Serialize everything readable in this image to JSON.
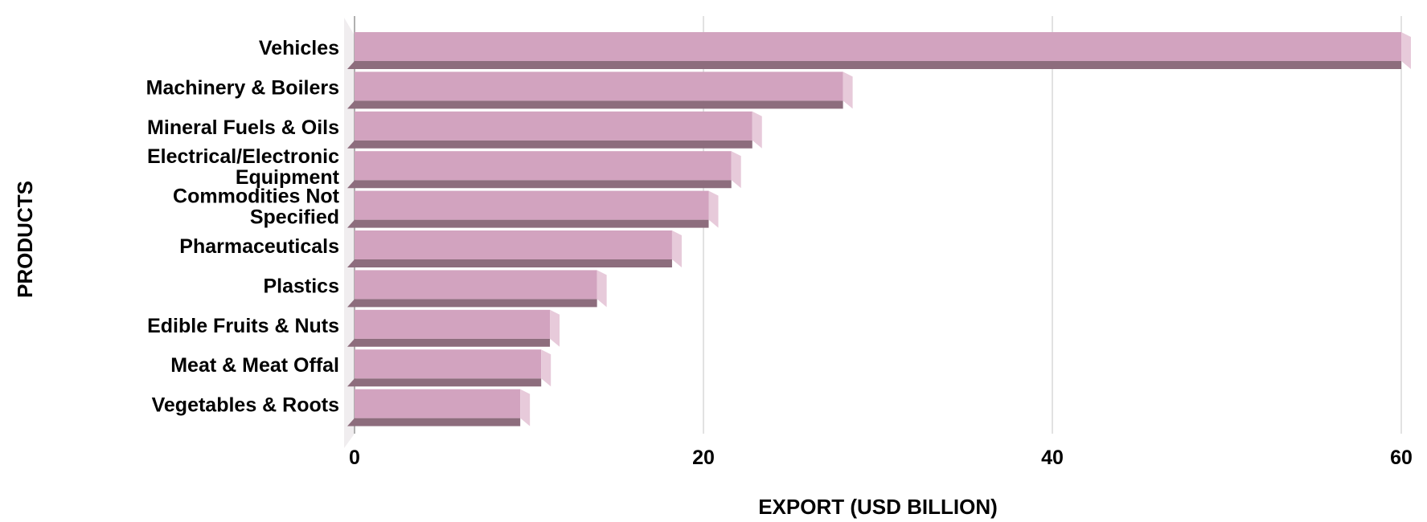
{
  "chart_data": {
    "type": "bar",
    "orientation": "horizontal",
    "title": "",
    "xlabel": "EXPORT (USD BILLION)",
    "ylabel": "PRODUCTS",
    "categories": [
      "Vehicles",
      "Machinery & Boilers",
      "Mineral Fuels & Oils",
      "Electrical/Electronic\nEquipment",
      "Commodities Not\nSpecified",
      "Pharmaceuticals",
      "Plastics",
      "Edible Fruits & Nuts",
      "Meat & Meat Offal",
      "Vegetables & Roots"
    ],
    "values": [
      60,
      28,
      22.8,
      21.6,
      20.3,
      18.2,
      13.9,
      11.2,
      10.7,
      9.5
    ],
    "xticks": [
      0,
      20,
      40,
      60
    ],
    "xtick_labels": [
      "0",
      "20",
      "40",
      "60"
    ],
    "xlim": [
      0,
      61.5
    ],
    "grid": true,
    "legend": false,
    "style": "3d-horizontal-bars",
    "colors": {
      "bar_face": "#d2a3bf",
      "bar_end_cap": "#e7cada",
      "bar_bottom_shadow": "#8d6d7d",
      "wall": "#f0edef",
      "gridline": "#d9d9d9",
      "axis_line": "#a8a8a8",
      "text": "#000000",
      "background": "#ffffff"
    }
  }
}
